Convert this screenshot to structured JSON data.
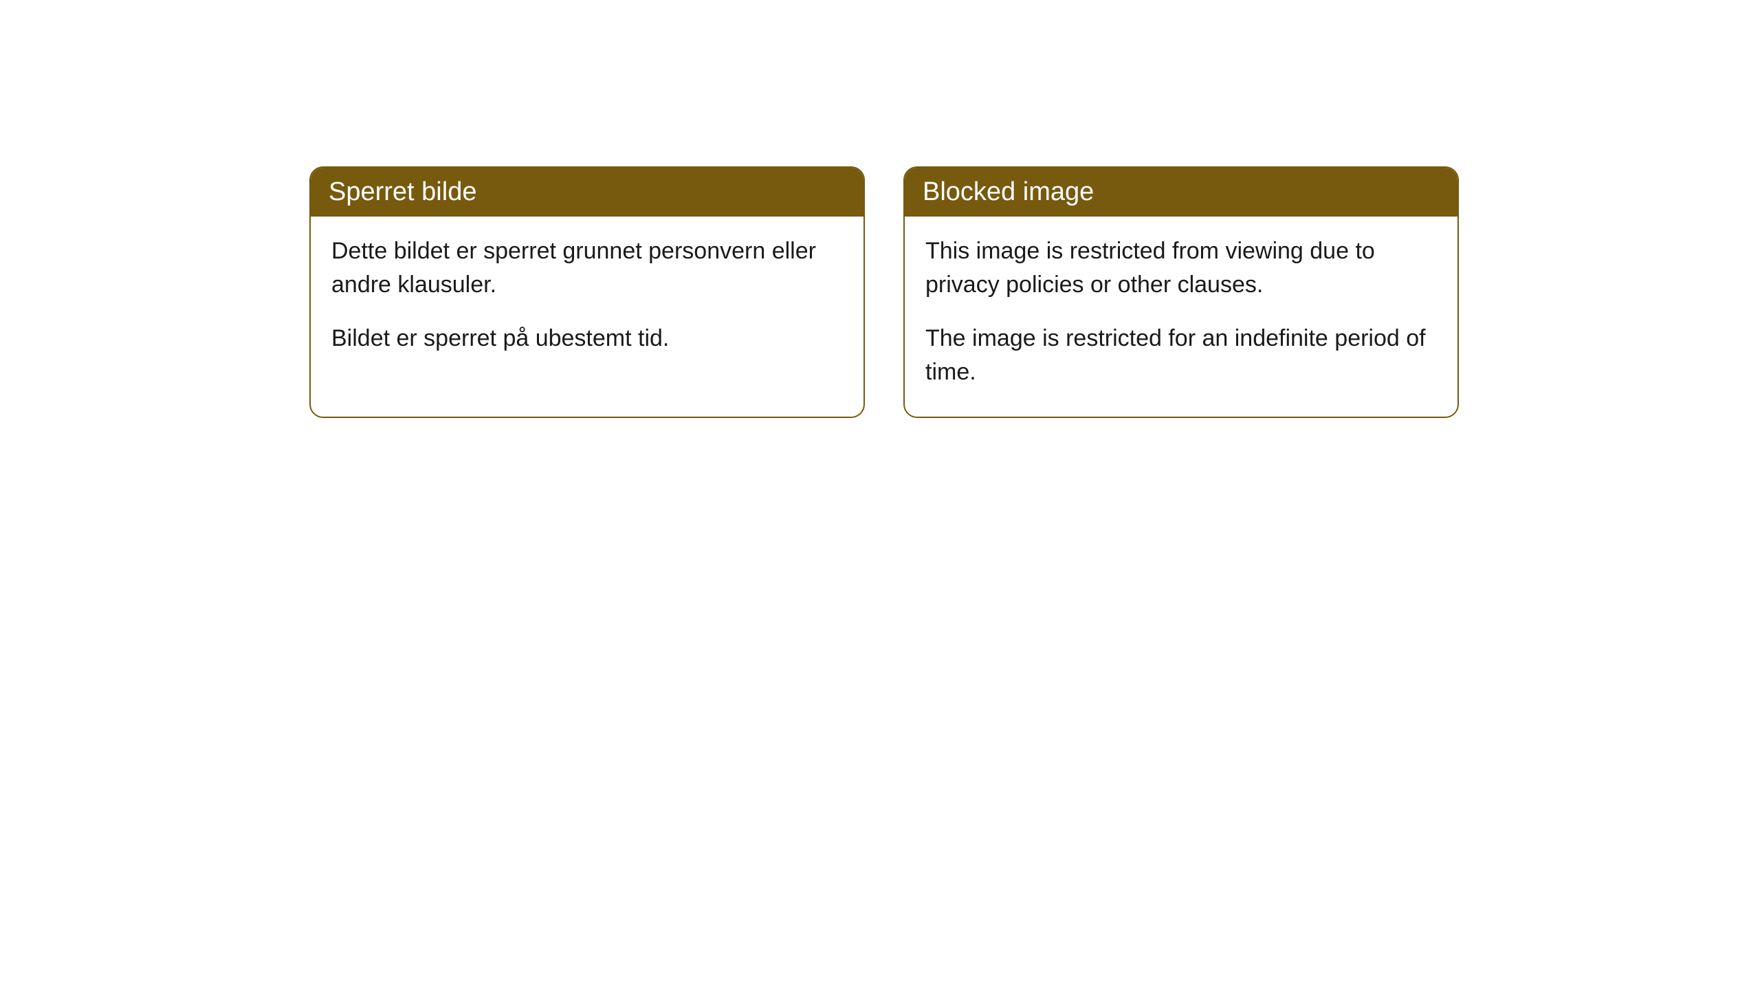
{
  "cards": [
    {
      "title": "Sperret bilde",
      "paragraph1": "Dette bildet er sperret grunnet personvern eller andre klausuler.",
      "paragraph2": "Bildet er sperret på ubestemt tid."
    },
    {
      "title": "Blocked image",
      "paragraph1": "This image is restricted from viewing due to privacy policies or other clauses.",
      "paragraph2": "The image is restricted for an indefinite period of time."
    }
  ],
  "style": {
    "header_bg": "#775a0e",
    "header_text_color": "#ffffff",
    "border_color": "#775a0e",
    "body_bg": "#ffffff",
    "body_text_color": "#1a1a1a",
    "border_radius": 20,
    "title_fontsize": 38,
    "body_fontsize": 34
  }
}
